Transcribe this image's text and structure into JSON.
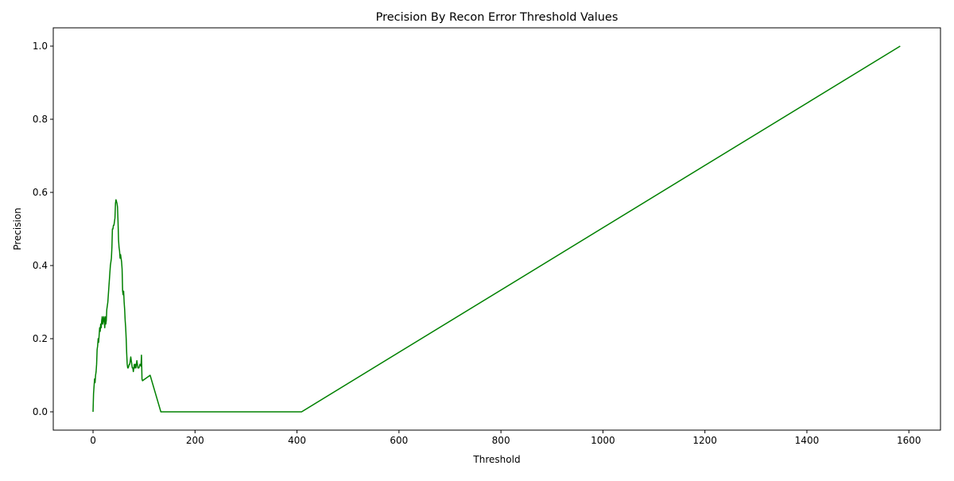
{
  "chart_data": {
    "type": "line",
    "title": "Precision By Recon Error Threshold Values",
    "xlabel": "Threshold",
    "ylabel": "Precision",
    "xlim": [
      -78,
      1662
    ],
    "ylim": [
      -0.05,
      1.05
    ],
    "xticks": [
      0,
      200,
      400,
      600,
      800,
      1000,
      1200,
      1400,
      1600
    ],
    "xtick_labels": [
      "0",
      "200",
      "400",
      "600",
      "800",
      "1000",
      "1200",
      "1400",
      "1600"
    ],
    "yticks": [
      0.0,
      0.2,
      0.4,
      0.6,
      0.8,
      1.0
    ],
    "ytick_labels": [
      "0.0",
      "0.2",
      "0.4",
      "0.6",
      "0.8",
      "1.0"
    ],
    "grid": false,
    "legend": "none",
    "series": [
      {
        "color": "#008000",
        "x": [
          0,
          1,
          2,
          3,
          4,
          5,
          6,
          7,
          8,
          9,
          10,
          11,
          12,
          13,
          14,
          15,
          16,
          17,
          18,
          19,
          20,
          21,
          22,
          23,
          24,
          25,
          26,
          27,
          28,
          29,
          30,
          31,
          32,
          33,
          34,
          35,
          36,
          37,
          38,
          39,
          40,
          41,
          42,
          43,
          44,
          45,
          46,
          47,
          48,
          49,
          50,
          51,
          52,
          53,
          54,
          55,
          56,
          57,
          58,
          59,
          60,
          61,
          62,
          63,
          64,
          65,
          66,
          67,
          68,
          69,
          70,
          71,
          72,
          73,
          74,
          75,
          76,
          77,
          78,
          79,
          80,
          81,
          82,
          83,
          84,
          85,
          86,
          87,
          88,
          90,
          92,
          94,
          95,
          96,
          97,
          112,
          133,
          409,
          1583
        ],
        "y": [
          0.0,
          0.05,
          0.07,
          0.09,
          0.08,
          0.1,
          0.11,
          0.13,
          0.17,
          0.18,
          0.2,
          0.19,
          0.21,
          0.23,
          0.22,
          0.24,
          0.23,
          0.25,
          0.26,
          0.24,
          0.25,
          0.26,
          0.25,
          0.23,
          0.26,
          0.24,
          0.25,
          0.28,
          0.29,
          0.3,
          0.32,
          0.34,
          0.36,
          0.38,
          0.4,
          0.41,
          0.42,
          0.45,
          0.5,
          0.5,
          0.51,
          0.51,
          0.52,
          0.53,
          0.57,
          0.58,
          0.575,
          0.57,
          0.56,
          0.52,
          0.47,
          0.45,
          0.44,
          0.42,
          0.43,
          0.42,
          0.41,
          0.39,
          0.33,
          0.32,
          0.33,
          0.3,
          0.28,
          0.25,
          0.23,
          0.2,
          0.16,
          0.13,
          0.12,
          0.12,
          0.125,
          0.13,
          0.13,
          0.14,
          0.15,
          0.14,
          0.13,
          0.12,
          0.12,
          0.11,
          0.12,
          0.13,
          0.12,
          0.13,
          0.12,
          0.13,
          0.14,
          0.13,
          0.12,
          0.12,
          0.13,
          0.125,
          0.155,
          0.09,
          0.085,
          0.1,
          0.0,
          0.0,
          1.0
        ]
      }
    ]
  }
}
